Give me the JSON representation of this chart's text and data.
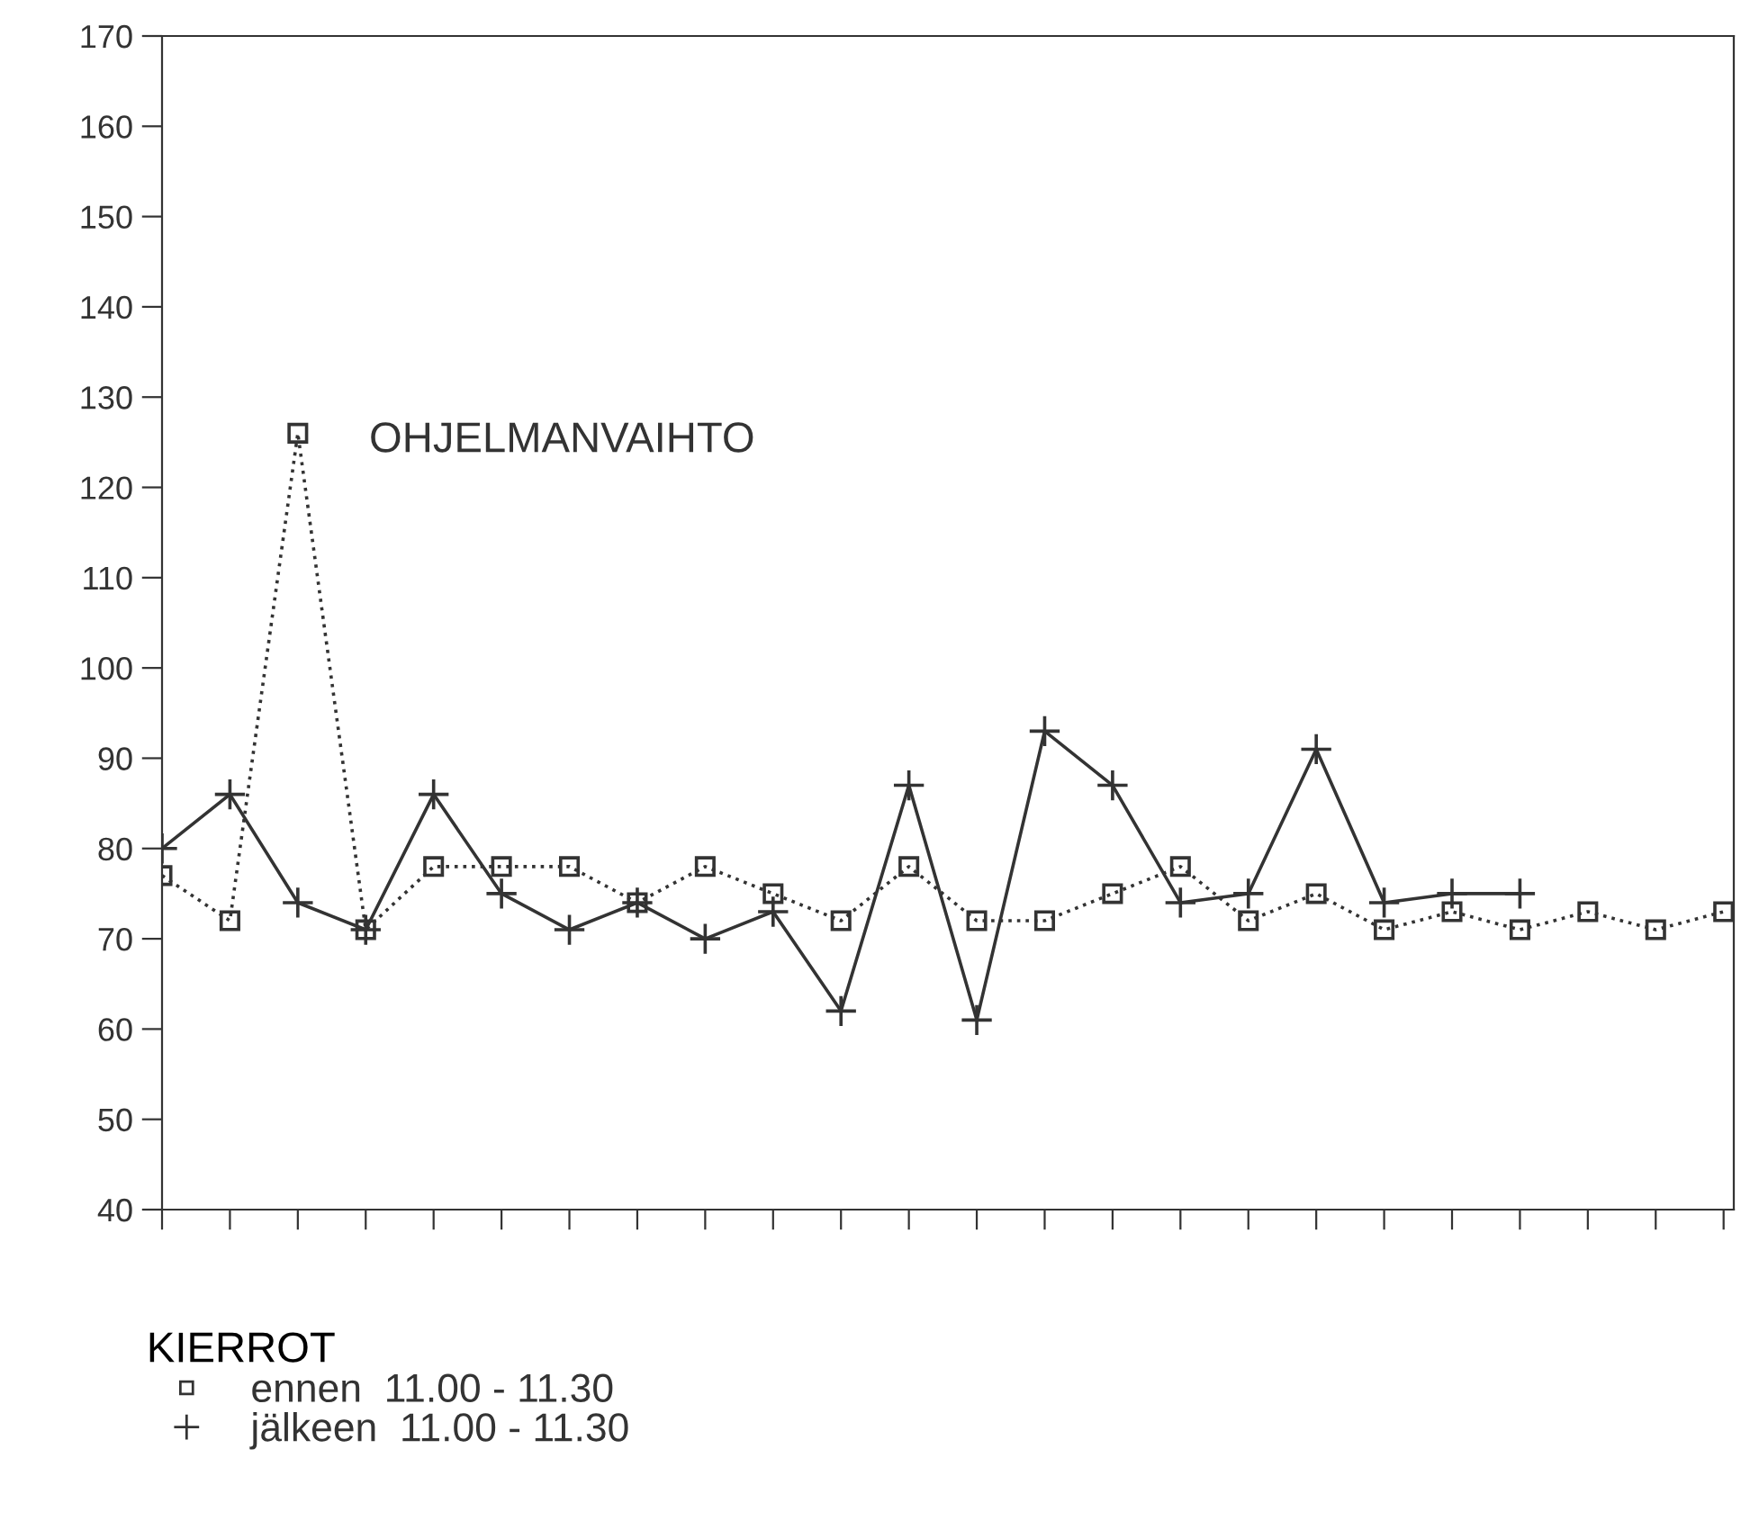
{
  "chart_data": {
    "type": "line",
    "categories": [
      null,
      null,
      null,
      null,
      null,
      null,
      null,
      null,
      null,
      null,
      null,
      null,
      null,
      null,
      null,
      null,
      null,
      null,
      null,
      null,
      null,
      null,
      null,
      null
    ],
    "ylim": [
      40,
      170
    ],
    "yticks": [
      40,
      50,
      60,
      70,
      80,
      90,
      100,
      110,
      120,
      130,
      140,
      150,
      160,
      170
    ],
    "grid": false,
    "legend": "bottom",
    "legend_title": "KIERROT",
    "annotations": [
      "OHJELMANVAIHTO"
    ],
    "series": [
      {
        "name": "ennen  11.00 - 11.30",
        "color": "#333333",
        "marker": "square",
        "line_style": "dotted",
        "values": [
          77,
          72,
          126,
          71,
          78,
          78,
          78,
          74,
          78,
          75,
          72,
          78,
          72,
          72,
          75,
          78,
          72,
          75,
          71,
          73,
          71,
          73,
          71,
          73
        ]
      },
      {
        "name": "jälkeen  11.00 - 11.30",
        "color": "#333333",
        "marker": "cross",
        "line_style": "solid",
        "values": [
          80,
          86,
          74,
          71,
          86,
          75,
          71,
          74,
          70,
          73,
          62,
          87,
          61,
          93,
          87,
          74,
          75,
          91,
          74,
          75,
          75,
          null,
          null,
          null
        ]
      }
    ]
  }
}
